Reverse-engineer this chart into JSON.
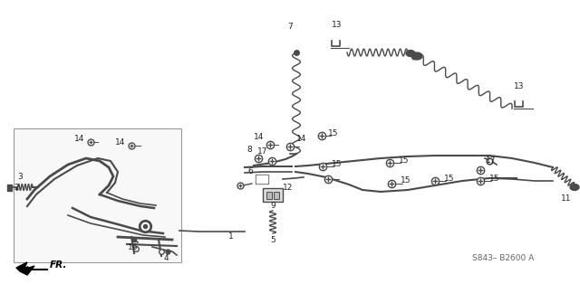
{
  "bg_color": "#ffffff",
  "line_color": "#4a4a4a",
  "label_color": "#222222",
  "watermark": "S843– B2600 A",
  "fr_label": "FR.",
  "figsize": [
    6.4,
    3.14
  ],
  "dpi": 100
}
